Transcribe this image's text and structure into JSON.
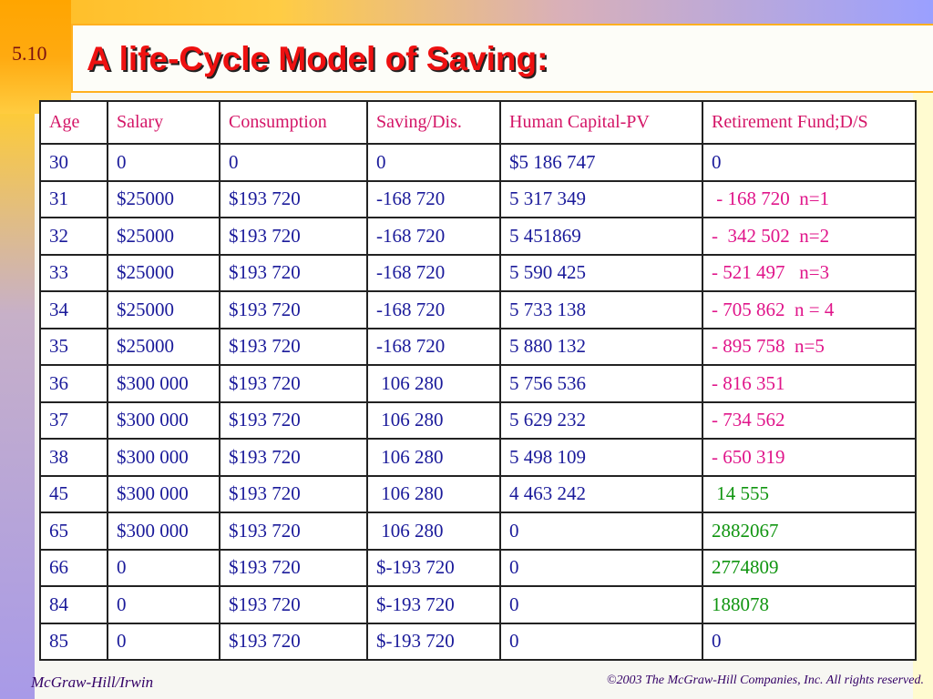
{
  "slide": {
    "number": "5.10",
    "title": "A life-Cycle Model of Saving:"
  },
  "table": {
    "headers": [
      "Age",
      "Salary",
      "Consumption",
      "Saving/Dis.",
      "Human Capital-PV",
      "Retirement Fund;D/S"
    ],
    "rows": [
      [
        "30",
        "0",
        "0",
        "0",
        "$5 186 747",
        "0"
      ],
      [
        "31",
        "$25000",
        "$193 720",
        "-168 720",
        "5 317 349",
        " - 168 720  n=1"
      ],
      [
        "32",
        "$25000",
        "$193 720",
        "-168 720",
        "5 451869",
        "-  342 502  n=2"
      ],
      [
        "33",
        "$25000",
        "$193 720",
        "-168 720",
        "5 590 425",
        "- 521 497   n=3"
      ],
      [
        "34",
        "$25000",
        "$193 720",
        "-168 720",
        "5 733 138",
        "- 705 862  n = 4"
      ],
      [
        "35",
        "$25000",
        "$193 720",
        "-168 720",
        "5 880 132",
        "- 895 758  n=5"
      ],
      [
        "36",
        "$300 000",
        "$193 720",
        " 106 280",
        "5 756 536",
        "- 816 351"
      ],
      [
        "37",
        "$300 000",
        "$193 720",
        " 106 280",
        "5 629 232",
        "- 734 562"
      ],
      [
        "38",
        "$300 000",
        "$193 720",
        " 106 280",
        "5 498 109",
        "- 650 319"
      ],
      [
        "45",
        "$300 000",
        "$193 720",
        " 106 280",
        "4 463 242",
        " 14 555"
      ],
      [
        "65",
        "$300 000",
        "$193 720",
        " 106 280",
        "0",
        "2882067"
      ],
      [
        "66",
        "0",
        "$193 720",
        "$-193 720",
        "0",
        "2774809"
      ],
      [
        "84",
        "0",
        "$193 720",
        "$-193 720",
        "0",
        "188078"
      ],
      [
        "85",
        "0",
        "$193 720",
        "$-193 720",
        "0",
        "0"
      ]
    ],
    "retirement_fund_colors": [
      "default",
      "neg",
      "neg",
      "neg",
      "neg",
      "neg",
      "neg",
      "neg",
      "neg",
      "pos",
      "pos",
      "pos",
      "pos",
      "default"
    ]
  },
  "footer": {
    "left": "McGraw-Hill/Irwin",
    "right": "©2003 The McGraw-Hill Companies, Inc. All rights reserved."
  }
}
